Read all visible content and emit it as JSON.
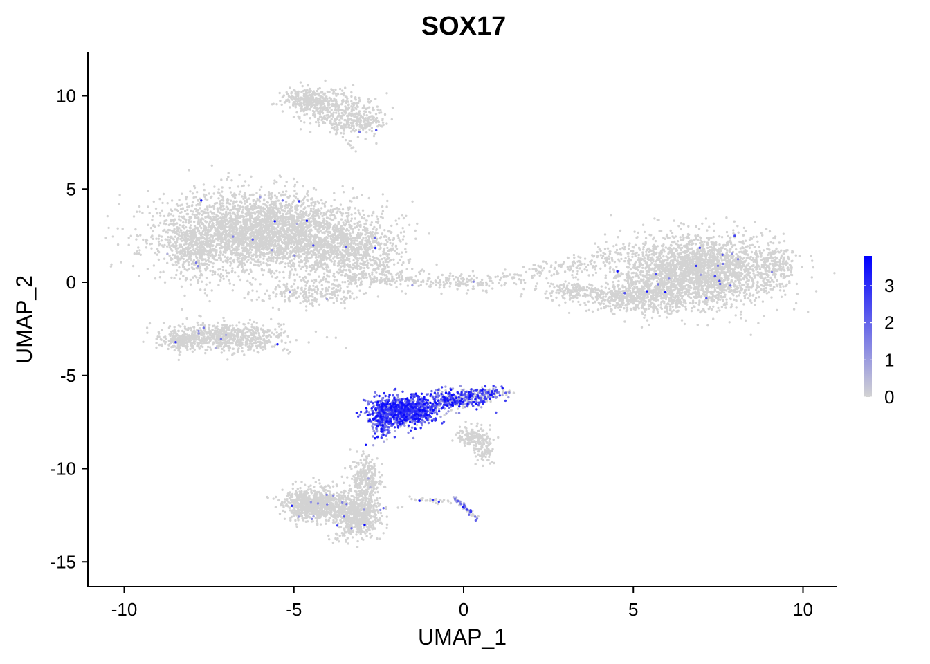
{
  "chart_data": {
    "type": "scatter",
    "title": "SOX17",
    "xlabel": "UMAP_1",
    "ylabel": "UMAP_2",
    "xlim": [
      -11,
      11
    ],
    "ylim": [
      -16.3,
      12.3
    ],
    "x_ticks": [
      -10,
      -5,
      0,
      5,
      10
    ],
    "y_ticks": [
      10,
      5,
      0,
      -5,
      -10,
      -15
    ],
    "x_tick_labels": [
      "-10",
      "-5",
      "0",
      "5",
      "10"
    ],
    "y_tick_labels": [
      "10",
      "5",
      "0",
      "-5",
      "-10",
      "-15"
    ],
    "grid": false,
    "legend": {
      "placement": "right",
      "type": "colorbar",
      "range": [
        0,
        3.8
      ],
      "ticks": [
        0,
        1,
        2,
        3
      ],
      "tick_labels": [
        "0",
        "1",
        "2",
        "3"
      ],
      "low_color": "#d3d3d3",
      "high_color": "#0000ff"
    },
    "clusters": [
      {
        "cx": -6.0,
        "cy": 2.7,
        "sx": 1.7,
        "sy": 1.2,
        "n": 3200,
        "expr": 0.005
      },
      {
        "cx": -3.4,
        "cy": 1.7,
        "sx": 1.0,
        "sy": 1.0,
        "n": 900,
        "expr": 0.005
      },
      {
        "cx": -7.9,
        "cy": 1.6,
        "sx": 0.5,
        "sy": 0.9,
        "n": 350,
        "expr": 0.005
      },
      {
        "cx": -7.0,
        "cy": -2.9,
        "sx": 1.1,
        "sy": 0.45,
        "n": 700,
        "expr": 0.01
      },
      {
        "cx": -8.3,
        "cy": -3.2,
        "sx": 0.3,
        "sy": 0.25,
        "n": 150,
        "expr": 0.0
      },
      {
        "cx": -4.5,
        "cy": -0.6,
        "sx": 0.9,
        "sy": 0.4,
        "n": 220,
        "expr": 0.005
      },
      {
        "cx": 6.9,
        "cy": 0.6,
        "sx": 1.4,
        "sy": 1.1,
        "n": 2600,
        "expr": 0.01
      },
      {
        "cx": 5.0,
        "cy": -0.8,
        "sx": 0.9,
        "sy": 0.45,
        "n": 500,
        "expr": 0.005
      },
      {
        "cx": 3.3,
        "cy": -0.5,
        "sx": 0.6,
        "sy": 0.3,
        "n": 160,
        "expr": 0.005
      },
      {
        "cx": 9.2,
        "cy": 1.0,
        "sx": 0.25,
        "sy": 0.6,
        "n": 120,
        "expr": 0.0
      },
      {
        "cx": -4.6,
        "cy": 9.8,
        "sx": 0.45,
        "sy": 0.35,
        "n": 240,
        "expr": 0.0
      },
      {
        "cx": -3.8,
        "cy": 9.3,
        "sx": 0.7,
        "sy": 0.6,
        "n": 320,
        "expr": 0.01
      },
      {
        "cx": -3.0,
        "cy": 8.6,
        "sx": 0.5,
        "sy": 0.35,
        "n": 160,
        "expr": 0.01
      },
      {
        "cx": -1.7,
        "cy": -6.9,
        "sx": 0.55,
        "sy": 0.45,
        "n": 900,
        "expr": 0.95
      },
      {
        "cx": -2.4,
        "cy": -7.3,
        "sx": 0.2,
        "sy": 0.6,
        "n": 250,
        "expr": 0.9
      },
      {
        "cx": -0.3,
        "cy": -6.3,
        "sx": 0.6,
        "sy": 0.3,
        "n": 350,
        "expr": 0.75
      },
      {
        "cx": 0.6,
        "cy": -6.0,
        "sx": 0.4,
        "sy": 0.18,
        "n": 150,
        "expr": 0.55
      },
      {
        "cx": 0.3,
        "cy": -8.3,
        "sx": 0.3,
        "sy": 0.3,
        "n": 140,
        "expr": 0.0
      },
      {
        "cx": 0.6,
        "cy": -9.0,
        "sx": 0.2,
        "sy": 0.4,
        "n": 80,
        "expr": 0.0
      },
      {
        "cx": -4.5,
        "cy": -11.9,
        "sx": 0.5,
        "sy": 0.5,
        "n": 700,
        "expr": 0.01
      },
      {
        "cx": -3.1,
        "cy": -12.6,
        "sx": 0.4,
        "sy": 0.7,
        "n": 500,
        "expr": 0.02
      },
      {
        "cx": -2.9,
        "cy": -10.6,
        "sx": 0.25,
        "sy": 0.7,
        "n": 300,
        "expr": 0.01
      },
      {
        "cx": -3.5,
        "cy": -12.1,
        "sx": 0.5,
        "sy": 0.45,
        "n": 300,
        "expr": 0.01
      }
    ],
    "bridges": [
      {
        "x0": -3.5,
        "y0": 0.3,
        "x1": 0.8,
        "y1": -0.1,
        "n": 260,
        "width": 0.22,
        "expr": 0.01
      },
      {
        "x0": 0.8,
        "y0": 0.1,
        "x1": 4.4,
        "y1": 1.4,
        "n": 160,
        "width": 0.25,
        "expr": 0.0
      },
      {
        "x0": -0.3,
        "y0": -11.5,
        "x1": 0.4,
        "y1": -12.7,
        "n": 60,
        "width": 0.08,
        "expr": 0.5
      },
      {
        "x0": -1.6,
        "y0": -11.6,
        "x1": -0.3,
        "y1": -11.8,
        "n": 30,
        "width": 0.08,
        "expr": 0.05
      },
      {
        "x0": -3.9,
        "y0": 8.7,
        "x1": -3.2,
        "y1": 7.1,
        "n": 25,
        "width": 0.12,
        "expr": 0.05
      }
    ]
  }
}
